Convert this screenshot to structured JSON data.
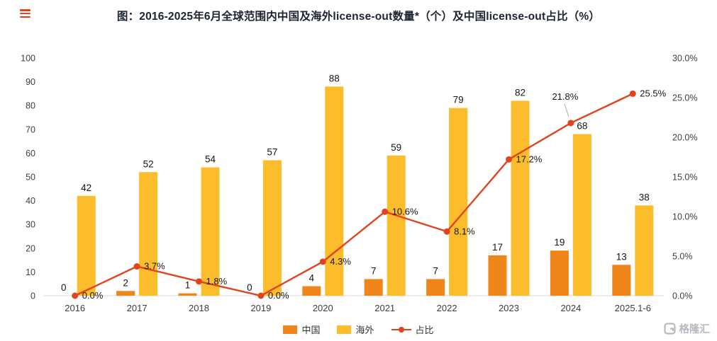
{
  "title": "图：2016-2025年6月全球范围内中国及海外license-out数量*（个）及中国license-out占比（%）",
  "watermark": "格隆汇",
  "chart_data": {
    "type": "bar+line",
    "categories": [
      "2016",
      "2017",
      "2018",
      "2019",
      "2020",
      "2021",
      "2022",
      "2023",
      "2024",
      "2025.1-6"
    ],
    "series": [
      {
        "name": "中国",
        "type": "bar",
        "color": "#F08519",
        "values": [
          0,
          2,
          1,
          0,
          4,
          7,
          7,
          17,
          19,
          13
        ]
      },
      {
        "name": "海外",
        "type": "bar",
        "color": "#FBBD2C",
        "values": [
          42,
          52,
          54,
          57,
          88,
          59,
          79,
          82,
          68,
          38
        ]
      },
      {
        "name": "占比",
        "type": "line",
        "color": "#E2431E",
        "axis": "right",
        "values": [
          0.0,
          3.7,
          1.8,
          0.0,
          4.3,
          10.6,
          8.1,
          17.2,
          21.8,
          25.5
        ],
        "label_placement": [
          "right",
          "right",
          "right",
          "right",
          "right",
          "right",
          "right",
          "right",
          "callout-above",
          "right"
        ]
      }
    ],
    "left_axis": {
      "min": 0,
      "max": 100,
      "step": 10
    },
    "right_axis": {
      "min": 0,
      "max": 30,
      "step": 5,
      "format": "percent1"
    },
    "grid": false,
    "legend_position": "bottom"
  }
}
